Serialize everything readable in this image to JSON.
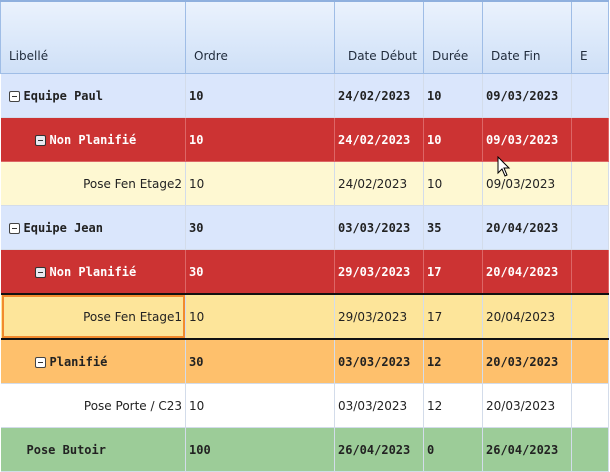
{
  "columns": [
    "Libellé",
    "Ordre",
    "Date Début",
    "Durée",
    "Date Fin",
    "E"
  ],
  "rows": [
    {
      "type": "team",
      "label": "Equipe Paul",
      "ordre": "10",
      "debut": "24/02/2023",
      "duree": "10",
      "fin": "09/03/2023",
      "toggle": "collapse-icon"
    },
    {
      "type": "np",
      "label": "Non Planifié",
      "ordre": "10",
      "debut": "24/02/2023",
      "duree": "10",
      "fin": "09/03/2023",
      "toggle": "collapse-icon"
    },
    {
      "type": "yellow",
      "label": "Pose Fen Etage2",
      "ordre": "10",
      "debut": "24/02/2023",
      "duree": "10",
      "fin": "09/03/2023"
    },
    {
      "type": "team",
      "label": "Equipe Jean",
      "ordre": "30",
      "debut": "03/03/2023",
      "duree": "35",
      "fin": "20/04/2023",
      "toggle": "collapse-icon"
    },
    {
      "type": "np",
      "label": "Non Planifié",
      "ordre": "30",
      "debut": "29/03/2023",
      "duree": "17",
      "fin": "20/04/2023",
      "toggle": "collapse-icon"
    },
    {
      "type": "sel",
      "label": "Pose Fen Etage1",
      "ordre": "10",
      "debut": "29/03/2023",
      "duree": "17",
      "fin": "20/04/2023"
    },
    {
      "type": "pl",
      "label": "Planifié",
      "ordre": "30",
      "debut": "03/03/2023",
      "duree": "12",
      "fin": "20/03/2023",
      "toggle": "collapse-icon"
    },
    {
      "type": "white",
      "label": "Pose Porte / C23",
      "ordre": "10",
      "debut": "03/03/2023",
      "duree": "12",
      "fin": "20/03/2023"
    },
    {
      "type": "green",
      "label": "Pose Butoir",
      "ordre": "100",
      "debut": "26/04/2023",
      "duree": "0",
      "fin": "26/04/2023"
    }
  ],
  "colors": {
    "team": "#dae6fc",
    "non_planifie": "#cc3333",
    "planifie": "#fec06c",
    "task": "#fef8d2",
    "selected": "#fde59a",
    "milestone": "#9ccc98"
  }
}
